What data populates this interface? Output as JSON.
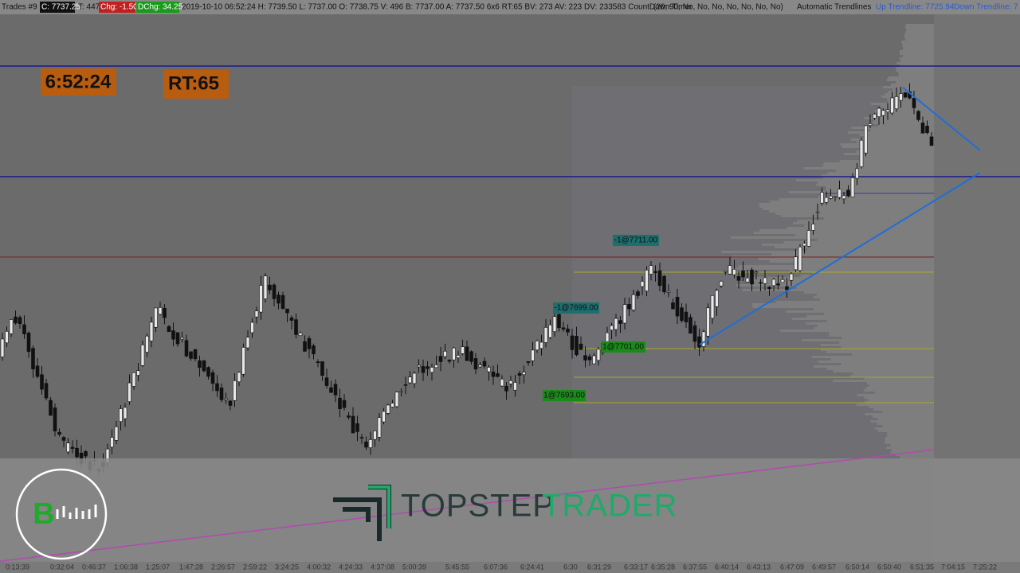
{
  "status_bar": {
    "instrument": "Trades #9",
    "close": "C: 7737.25",
    "ticks": "T: 447",
    "change": "Chg: -1.50",
    "day_change": "DChg: 34.25",
    "details": "2019-10-10 06:52:24 H: 7739.50 L: 7737.00 O: 7738.75 V: 496 B: 7737.00 A: 7737.50 6x6 RT:65 BV: 273 AV: 223 DV: 233583 CountDown Timer",
    "params": "(20, 90, No, No, No, No, No, No, No)",
    "trendlines": "Automatic Trendlines",
    "up_trendline": "Up Trendline: 7725.94",
    "down_trendline": "Down Trendline: 7"
  },
  "timer": "6:52:24",
  "range_timer": "RT:65",
  "orders": [
    "-1@7711.00",
    "-1@7699.00",
    "1@7701.00",
    "1@7693.00"
  ],
  "logo": {
    "badge": "B",
    "word1": "TOPSTEP",
    "word2": "TRADER"
  },
  "time_axis": [
    "0:13:39",
    "0:32:04",
    "0:46:37",
    "1:06:38",
    "1:25:07",
    "1:47:28",
    "2:26:57",
    "2:59:22",
    "3:24:25",
    "4:00:32",
    "4:24:33",
    "4:37:08",
    "5:00:39",
    "5:45:55",
    "6:07:36",
    "6:24:41",
    "6:30",
    "6:31:29",
    "6:33:17",
    "6:35:28",
    "6:37:55",
    "6:40:14",
    "6:43:13",
    "6:47:09",
    "6:49:57",
    "6:50:14",
    "6:50:40",
    "6:51:35",
    "7:04:15",
    "7:25:22"
  ]
}
